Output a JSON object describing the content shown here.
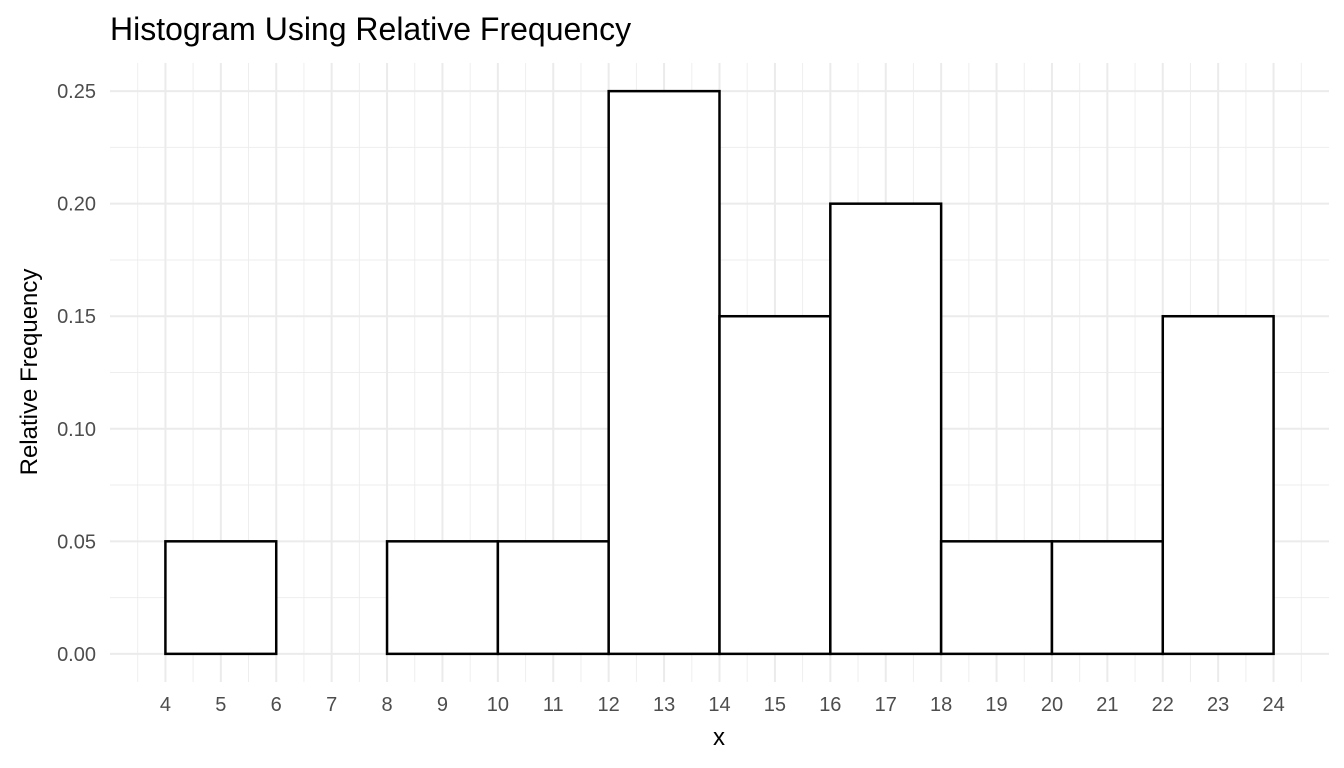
{
  "chart_data": {
    "type": "bar",
    "title": "Histogram Using Relative Frequency",
    "xlabel": "x",
    "ylabel": "Relative Frequency",
    "xlim": [
      3,
      25
    ],
    "ylim": [
      -0.0125,
      0.2625
    ],
    "x_ticks": [
      "4",
      "5",
      "6",
      "7",
      "8",
      "9",
      "10",
      "11",
      "12",
      "13",
      "14",
      "15",
      "16",
      "17",
      "18",
      "19",
      "20",
      "21",
      "22",
      "23",
      "24"
    ],
    "y_ticks": [
      "0.00",
      "0.05",
      "0.10",
      "0.15",
      "0.20",
      "0.25"
    ],
    "bins": [
      {
        "start": 4,
        "end": 6,
        "value": 0.05
      },
      {
        "start": 6,
        "end": 8,
        "value": 0.0
      },
      {
        "start": 8,
        "end": 10,
        "value": 0.05
      },
      {
        "start": 10,
        "end": 12,
        "value": 0.05
      },
      {
        "start": 12,
        "end": 14,
        "value": 0.25
      },
      {
        "start": 14,
        "end": 16,
        "value": 0.15
      },
      {
        "start": 16,
        "end": 18,
        "value": 0.2
      },
      {
        "start": 18,
        "end": 20,
        "value": 0.05
      },
      {
        "start": 20,
        "end": 22,
        "value": 0.05
      },
      {
        "start": 22,
        "end": 24,
        "value": 0.15
      }
    ],
    "bar_fill": "#ffffff",
    "bar_outline": "#000000",
    "grid": true,
    "legend": "none"
  }
}
